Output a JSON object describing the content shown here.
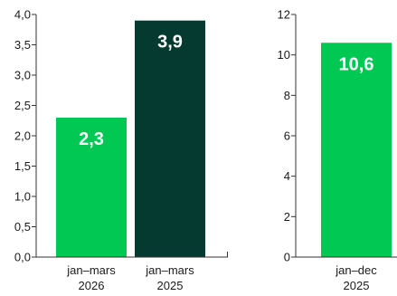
{
  "chart_data": [
    {
      "type": "bar",
      "categories": [
        [
          "jan–mars",
          "2026"
        ],
        [
          "jan–mars",
          "2025"
        ]
      ],
      "values": [
        2.3,
        3.9
      ],
      "data_labels": [
        "2,3",
        "3,9"
      ],
      "bar_colors": [
        "#00c853",
        "#053a30"
      ],
      "ylim": [
        0,
        4.0
      ],
      "yticks": [
        0.0,
        0.5,
        1.0,
        1.5,
        2.0,
        2.5,
        3.0,
        3.5,
        4.0
      ],
      "ytick_labels": [
        "0,0",
        "0,5",
        "1,0",
        "1,5",
        "2,0",
        "2,5",
        "3,0",
        "3,5",
        "4,0"
      ],
      "grid": false,
      "title": "",
      "xlabel": "",
      "ylabel": ""
    },
    {
      "type": "bar",
      "categories": [
        [
          "jan–dec",
          "2025"
        ]
      ],
      "values": [
        10.6
      ],
      "data_labels": [
        "10,6"
      ],
      "bar_colors": [
        "#00c853"
      ],
      "ylim": [
        0,
        12
      ],
      "yticks": [
        0,
        2,
        4,
        6,
        8,
        10,
        12
      ],
      "ytick_labels": [
        "0",
        "2",
        "4",
        "6",
        "8",
        "10",
        "12"
      ],
      "grid": false,
      "title": "",
      "xlabel": "",
      "ylabel": ""
    }
  ]
}
